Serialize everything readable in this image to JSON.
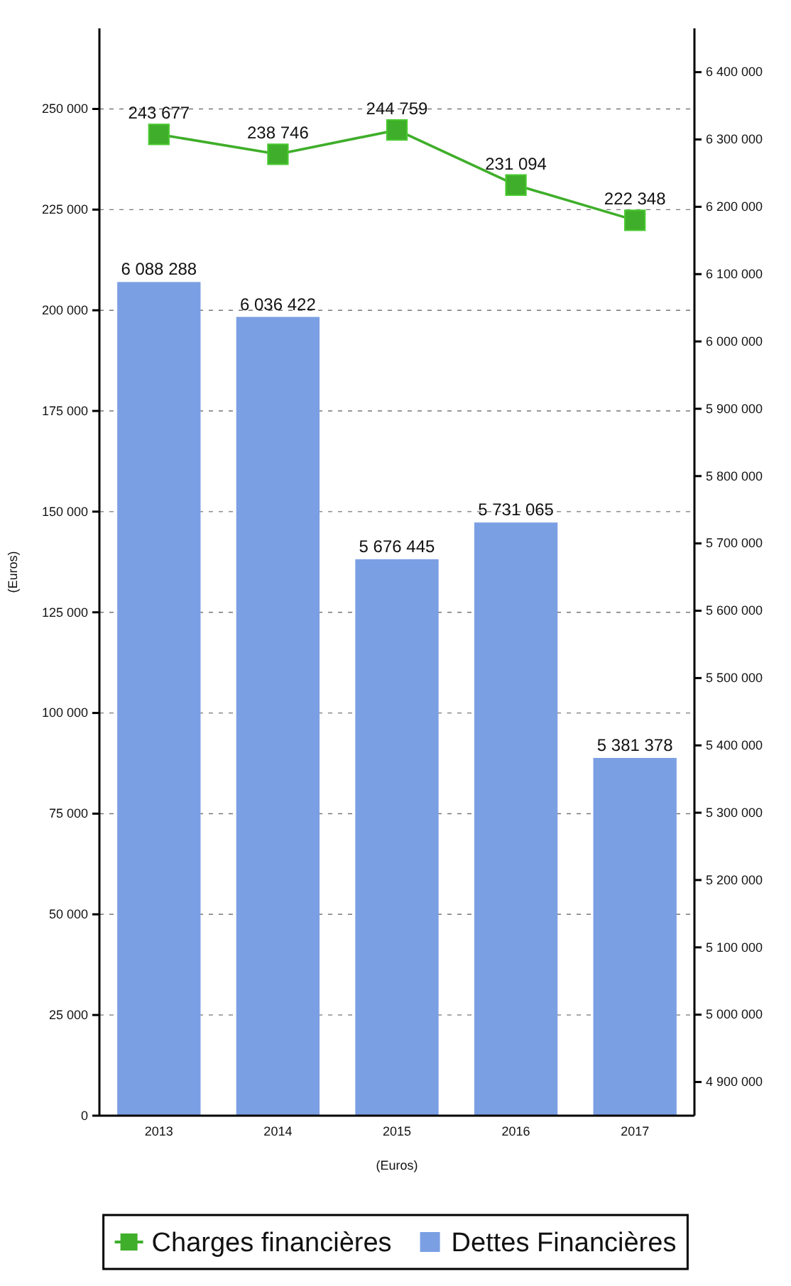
{
  "chart_data": {
    "type": "bar",
    "categories": [
      "2013",
      "2014",
      "2015",
      "2016",
      "2017"
    ],
    "xlabel": "(Euros)",
    "ylabel": "(Euros)",
    "series": [
      {
        "name": "Dettes Financières",
        "axis": "y2",
        "color": "#7b9fe3",
        "values": [
          6088288,
          6036422,
          5676445,
          5731065,
          5381378
        ],
        "value_labels": [
          "6 088 288",
          "6 036 422",
          "5 676 445",
          "5 731 065",
          "5 381 378"
        ]
      },
      {
        "name": "Charges financières",
        "type": "line",
        "axis": "y",
        "color": "#3fae2a",
        "marker": "square",
        "values": [
          243677,
          238746,
          244759,
          231094,
          222348
        ],
        "value_labels": [
          "243 677",
          "238 746",
          "244 759",
          "231 094",
          "222 348"
        ]
      }
    ],
    "ylim": [
      0,
      270000
    ],
    "yticks": [
      0,
      {
        "value": 25000,
        "label": "25 000"
      },
      {
        "value": 50000,
        "label": "50 000"
      },
      {
        "value": 75000,
        "label": "75 000"
      },
      {
        "value": 100000,
        "label": "100 000"
      },
      {
        "value": 125000,
        "label": "125 000"
      },
      {
        "value": 150000,
        "label": "150 000"
      },
      {
        "value": 175000,
        "label": "175 000"
      },
      {
        "value": 200000,
        "label": "200 000"
      },
      {
        "value": 225000,
        "label": "225 000"
      },
      {
        "value": 250000,
        "label": "250 000"
      }
    ],
    "y2lim": [
      4850000,
      6465000
    ],
    "y2ticks": [
      {
        "value": 4900000,
        "label": "4 900 000"
      },
      {
        "value": 5000000,
        "label": "5 000 000"
      },
      {
        "value": 5100000,
        "label": "5 100 000"
      },
      {
        "value": 5200000,
        "label": "5 200 000"
      },
      {
        "value": 5300000,
        "label": "5 300 000"
      },
      {
        "value": 5400000,
        "label": "5 400 000"
      },
      {
        "value": 5500000,
        "label": "5 500 000"
      },
      {
        "value": 5600000,
        "label": "5 600 000"
      },
      {
        "value": 5700000,
        "label": "5 700 000"
      },
      {
        "value": 5800000,
        "label": "5 800 000"
      },
      {
        "value": 5900000,
        "label": "5 900 000"
      },
      {
        "value": 6000000,
        "label": "6 000 000"
      },
      {
        "value": 6100000,
        "label": "6 100 000"
      },
      {
        "value": 6200000,
        "label": "6 200 000"
      },
      {
        "value": 6300000,
        "label": "6 300 000"
      },
      {
        "value": 6400000,
        "label": "6 400 000"
      }
    ],
    "grid": "y",
    "legend": "bottom"
  }
}
